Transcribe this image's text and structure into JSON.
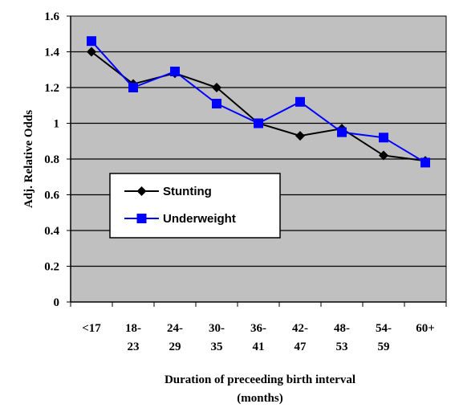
{
  "chart_data": {
    "type": "line",
    "categories": [
      "<17",
      "18-23",
      "24-29",
      "30-35",
      "36-41",
      "42-47",
      "48-53",
      "54-59",
      "60+"
    ],
    "category_tick_labels": [
      [
        "<17"
      ],
      [
        "18-",
        "23"
      ],
      [
        "24-",
        "29"
      ],
      [
        "30-",
        "35"
      ],
      [
        "36-",
        "41"
      ],
      [
        "42-",
        "47"
      ],
      [
        "48-",
        "53"
      ],
      [
        "54-",
        "59"
      ],
      [
        "60+"
      ]
    ],
    "series": [
      {
        "name": "Stunting",
        "values": [
          1.4,
          1.22,
          1.28,
          1.2,
          1.0,
          0.93,
          0.97,
          0.82,
          0.79
        ],
        "color": "#000000",
        "marker": "diamond"
      },
      {
        "name": "Underweight",
        "values": [
          1.46,
          1.2,
          1.29,
          1.11,
          1.0,
          1.12,
          0.95,
          0.92,
          0.78
        ],
        "color": "#0000ff",
        "marker": "square"
      }
    ],
    "xlabel_lines": [
      "Duration of preceeding birth interval",
      "(months)"
    ],
    "ylabel": "Adj. Relative Odds",
    "ylim": [
      0,
      1.6
    ],
    "yticks": [
      "0",
      "0.2",
      "0.4",
      "0.6",
      "0.8",
      "1",
      "1.2",
      "1.4",
      "1.6"
    ],
    "grid": true,
    "plot_background": "#c0c0c0",
    "legend_position": "center-left"
  }
}
